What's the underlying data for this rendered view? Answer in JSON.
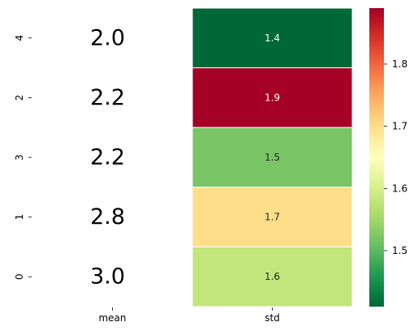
{
  "chart_data": {
    "type": "heatmap",
    "row_labels": [
      "4",
      "2",
      "3",
      "1",
      "0"
    ],
    "column_labels": [
      "mean",
      "std"
    ],
    "mean_values": [
      2.0,
      2.2,
      2.2,
      2.8,
      3.0
    ],
    "mean_annotations": [
      "2.0",
      "2.2",
      "2.2",
      "2.8",
      "3.0"
    ],
    "std_values": [
      1.41,
      1.89,
      1.52,
      1.7,
      1.58
    ],
    "std_annotations": [
      "1.4",
      "1.9",
      "1.5",
      "1.7",
      "1.6"
    ],
    "mean_column_colored": false,
    "colormap": "RdYlGn_r",
    "colorbar": {
      "range": [
        1.41,
        1.89
      ],
      "ticks": [
        1.5,
        1.6,
        1.7,
        1.8
      ],
      "tick_labels": [
        "1.5",
        "1.6",
        "1.7",
        "1.8"
      ],
      "placement": "right"
    },
    "cell_border_color": "#ffffff",
    "colormap_stops": [
      "#006837",
      "#1a9850",
      "#66bd63",
      "#a6d96a",
      "#d9ef8b",
      "#ffffbf",
      "#fee08b",
      "#fdae61",
      "#f46d43",
      "#d73027",
      "#a50026"
    ]
  }
}
